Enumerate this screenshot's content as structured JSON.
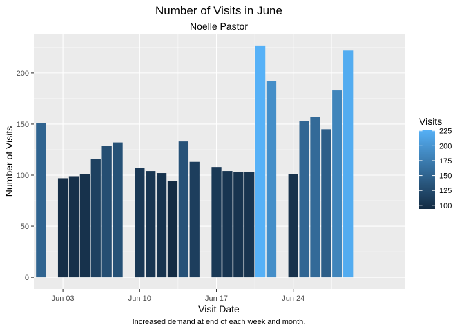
{
  "chart_data": {
    "type": "bar",
    "title": "Number of Visits in June",
    "subtitle": "Noelle Pastor",
    "xlabel": "Visit Date",
    "ylabel": "Number of Visits",
    "caption": "Increased demand at end of each week and month.",
    "x_ticks": [
      {
        "day": 3,
        "label": "Jun 03"
      },
      {
        "day": 10,
        "label": "Jun 10"
      },
      {
        "day": 17,
        "label": "Jun 17"
      },
      {
        "day": 24,
        "label": "Jun 24"
      }
    ],
    "y_ticks": [
      0,
      50,
      100,
      150,
      200
    ],
    "xlim": [
      30.35,
      64.15
    ],
    "xlim_note": "",
    "ylim": [
      -11.4,
      238.4
    ],
    "grid": true,
    "legend_title": "Visits",
    "legend_ticks": [
      100,
      125,
      150,
      175,
      200,
      225
    ],
    "legend_placement": "right",
    "color_low": "#132B43",
    "color_high": "#56B1F7",
    "color_range": [
      94,
      227
    ],
    "data": [
      {
        "date": "2018-06-01",
        "visits": 151
      },
      {
        "date": "2018-06-03",
        "visits": 97
      },
      {
        "date": "2018-06-04",
        "visits": 99
      },
      {
        "date": "2018-06-05",
        "visits": 101
      },
      {
        "date": "2018-06-06",
        "visits": 116
      },
      {
        "date": "2018-06-07",
        "visits": 129
      },
      {
        "date": "2018-06-08",
        "visits": 132
      },
      {
        "date": "2018-06-10",
        "visits": 107
      },
      {
        "date": "2018-06-11",
        "visits": 104
      },
      {
        "date": "2018-06-12",
        "visits": 102
      },
      {
        "date": "2018-06-13",
        "visits": 94
      },
      {
        "date": "2018-06-14",
        "visits": 133
      },
      {
        "date": "2018-06-15",
        "visits": 113
      },
      {
        "date": "2018-06-17",
        "visits": 108
      },
      {
        "date": "2018-06-18",
        "visits": 104
      },
      {
        "date": "2018-06-19",
        "visits": 103
      },
      {
        "date": "2018-06-20",
        "visits": 103
      },
      {
        "date": "2018-06-21",
        "visits": 227
      },
      {
        "date": "2018-06-22",
        "visits": 192
      },
      {
        "date": "2018-06-24",
        "visits": 101
      },
      {
        "date": "2018-06-25",
        "visits": 153
      },
      {
        "date": "2018-06-26",
        "visits": 157
      },
      {
        "date": "2018-06-27",
        "visits": 145
      },
      {
        "date": "2018-06-28",
        "visits": 183
      },
      {
        "date": "2018-06-29",
        "visits": 222
      }
    ]
  }
}
